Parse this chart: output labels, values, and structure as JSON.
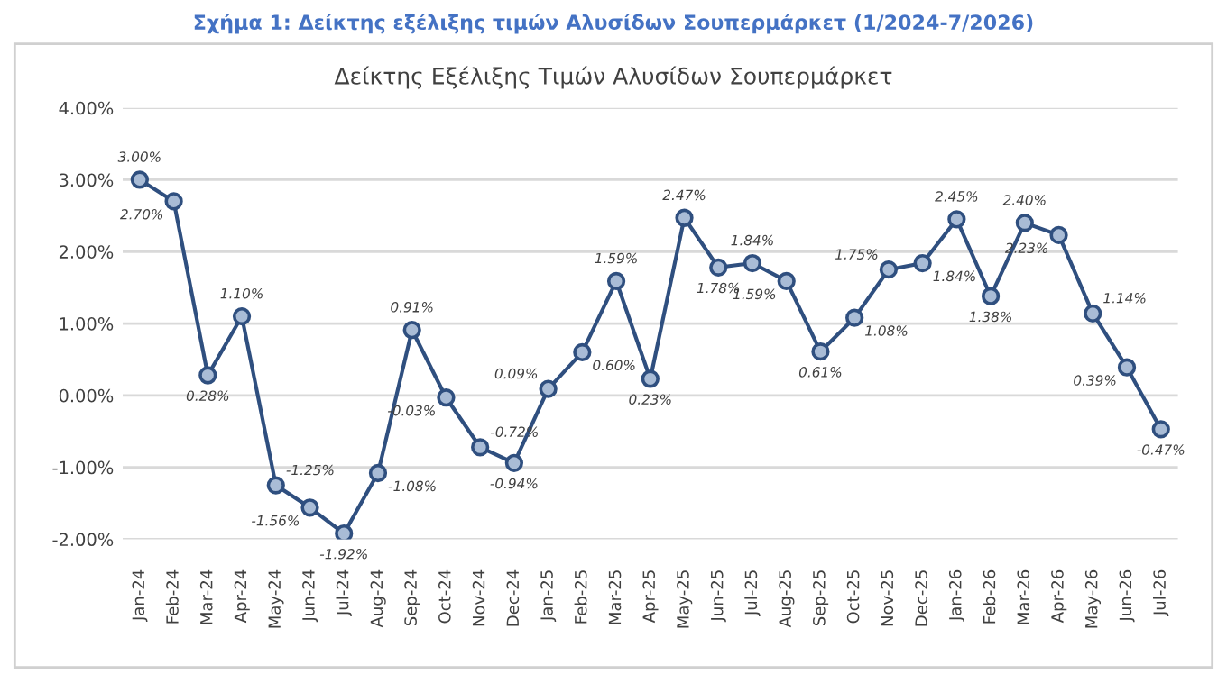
{
  "chart_data": {
    "type": "line",
    "title": "Σχήμα 1: Δείκτης εξέλιξης τιμών Αλυσίδων Σουπερμάρκετ (1/2024-7/2026)",
    "subtitle": "Δείκτης Εξέλιξης Τιμών Αλυσίδων Σουπερμάρκετ",
    "categories": [
      "Jan-24",
      "Feb-24",
      "Mar-24",
      "Apr-24",
      "May-24",
      "Jun-24",
      "Jul-24",
      "Aug-24",
      "Sep-24",
      "Oct-24",
      "Nov-24",
      "Dec-24",
      "Jan-25",
      "Feb-25",
      "Mar-25",
      "Apr-25",
      "May-25",
      "Jun-25",
      "Jul-25",
      "Aug-25",
      "Sep-25",
      "Oct-25",
      "Nov-25",
      "Dec-25",
      "Jan-26",
      "Feb-26",
      "Mar-26",
      "Apr-26",
      "May-26",
      "Jun-26",
      "Jul-26"
    ],
    "series": [
      {
        "color": "#2f4f7f",
        "values": [
          3.0,
          2.7,
          0.28,
          1.1,
          -1.25,
          -1.56,
          -1.92,
          -1.08,
          0.91,
          -0.03,
          -0.72,
          -0.94,
          0.09,
          0.6,
          1.59,
          0.23,
          2.47,
          1.78,
          1.84,
          1.59,
          0.61,
          1.08,
          1.75,
          1.84,
          2.45,
          1.38,
          2.4,
          2.23,
          1.14,
          0.39,
          -0.47
        ],
        "value_labels": [
          "3.00%",
          "2.70%",
          "0.28%",
          "1.10%",
          "-1.25%",
          "-1.56%",
          "-1.92%",
          "-1.08%",
          "0.91%",
          "-0.03%",
          "-0.72%",
          "-0.94%",
          "0.09%",
          "0.60%",
          "1.59%",
          "0.23%",
          "2.47%",
          "1.78%",
          "1.84%",
          "1.59%",
          "0.61%",
          "1.08%",
          "1.75%",
          "1.84%",
          "2.45%",
          "1.38%",
          "2.40%",
          "2.23%",
          "1.14%",
          "0.39%",
          "-0.47%"
        ]
      }
    ],
    "ylim": [
      -2,
      4
    ],
    "yticks": [
      {
        "value": -2,
        "label": "-2.00%"
      },
      {
        "value": -1,
        "label": "-1.00%"
      },
      {
        "value": 0,
        "label": "0.00%"
      },
      {
        "value": 1,
        "label": "1.00%"
      },
      {
        "value": 2,
        "label": "2.00%"
      },
      {
        "value": 3,
        "label": "3.00%"
      },
      {
        "value": 4,
        "label": "4.00%"
      }
    ],
    "grid": "y",
    "marker": "circle",
    "line_style": "solid",
    "legend": false
  }
}
